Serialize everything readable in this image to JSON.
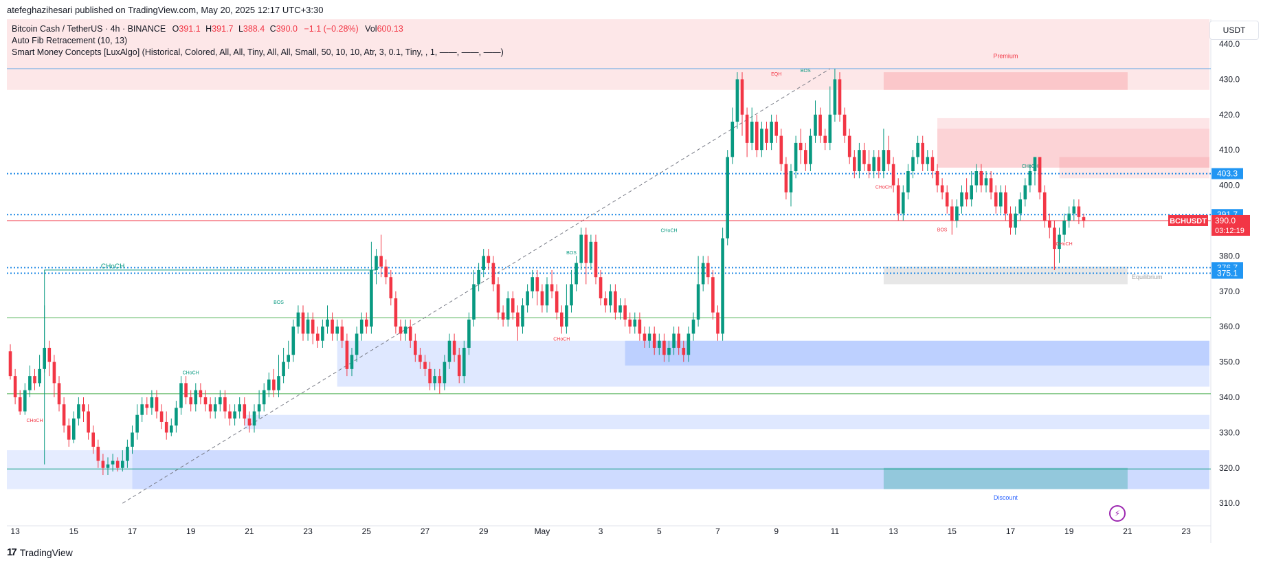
{
  "header": {
    "publisher_line": "atefeghazihesari published on TradingView.com, May 20, 2025 12:17 UTC+3:30"
  },
  "legend": {
    "symbol": "Bitcoin Cash / TetherUS · 4h · BINANCE",
    "open_label": "O",
    "open": "391.1",
    "high_label": "H",
    "high": "391.7",
    "low_label": "L",
    "low": "388.4",
    "close_label": "C",
    "close": "390.0",
    "change": "−1.1 (−0.28%)",
    "vol_label": "Vol",
    "volume": "600.13",
    "indicator_1": "Auto Fib Retracement (10, 13)",
    "indicator_2": "Smart Money Concepts [LuxAlgo] (Historical, Colored, All, All, Tiny, All, All, Small, 50, 10, 10, Atr, 3, 0.1, Tiny, , 1, ——, ——, ——)"
  },
  "currency_button": "USDT",
  "footer": {
    "logo": "17",
    "brand": "TradingView"
  },
  "colors": {
    "up": "#089981",
    "down": "#f23645",
    "premium": "#f23645",
    "discount": "#2962ff",
    "fib": "#1e88e5",
    "equilibrium": "#9e9e9e"
  },
  "chart_data": {
    "type": "candlestick",
    "symbol": "BCHUSDT",
    "timeframe": "4h",
    "ylim": [
      304,
      447
    ],
    "y_ticks": [
      310.0,
      320.0,
      330.0,
      340.0,
      350.0,
      360.0,
      370.0,
      380.0,
      390.0,
      400.0,
      410.0,
      420.0,
      430.0,
      440.0
    ],
    "x_tick_labels": [
      "13",
      "15",
      "17",
      "19",
      "21",
      "23",
      "25",
      "27",
      "29",
      "May",
      "3",
      "5",
      "7",
      "9",
      "11",
      "13",
      "15",
      "17",
      "19",
      "21",
      "23"
    ],
    "x_tick_pos": [
      0,
      12,
      24,
      36,
      48,
      60,
      72,
      84,
      96,
      108,
      120,
      132,
      144,
      156,
      168,
      180,
      192,
      204,
      216,
      228,
      240
    ],
    "candles_start_index": -1,
    "candles": [
      [
        353,
        346,
        355,
        345
      ],
      [
        346,
        340,
        348,
        338
      ],
      [
        340,
        336,
        342,
        335
      ],
      [
        336,
        342,
        344,
        335
      ],
      [
        342,
        346,
        349,
        340
      ],
      [
        346,
        344,
        348,
        342
      ],
      [
        344,
        348,
        352,
        343
      ],
      [
        348,
        354,
        366,
        347
      ],
      [
        354,
        350,
        356,
        346
      ],
      [
        350,
        344,
        352,
        340
      ],
      [
        344,
        338,
        346,
        336
      ],
      [
        338,
        332,
        340,
        330
      ],
      [
        332,
        328,
        334,
        326
      ],
      [
        328,
        334,
        336,
        327
      ],
      [
        334,
        338,
        340,
        332
      ],
      [
        338,
        336,
        340,
        333
      ],
      [
        336,
        330,
        338,
        328
      ],
      [
        330,
        326,
        332,
        324
      ],
      [
        326,
        322,
        328,
        320
      ],
      [
        322,
        320,
        324,
        318
      ],
      [
        320,
        321,
        323,
        318
      ],
      [
        321,
        322,
        324,
        319
      ],
      [
        322,
        320,
        323,
        319
      ],
      [
        320,
        322,
        325,
        319
      ],
      [
        322,
        326,
        328,
        320
      ],
      [
        326,
        330,
        332,
        324
      ],
      [
        330,
        335,
        338,
        328
      ],
      [
        335,
        338,
        340,
        333
      ],
      [
        338,
        337,
        340,
        335
      ],
      [
        337,
        340,
        342,
        335
      ],
      [
        340,
        336,
        342,
        334
      ],
      [
        336,
        333,
        338,
        331
      ],
      [
        333,
        330,
        336,
        328
      ],
      [
        330,
        332,
        334,
        329
      ],
      [
        332,
        337,
        339,
        330
      ],
      [
        337,
        344,
        346,
        335
      ],
      [
        344,
        340,
        346,
        338
      ],
      [
        340,
        338,
        342,
        336
      ],
      [
        338,
        342,
        344,
        336
      ],
      [
        342,
        340,
        344,
        338
      ],
      [
        340,
        338,
        342,
        336
      ],
      [
        338,
        336,
        340,
        334
      ],
      [
        336,
        338,
        340,
        334
      ],
      [
        338,
        340,
        342,
        336
      ],
      [
        340,
        336,
        342,
        334
      ],
      [
        336,
        334,
        338,
        332
      ],
      [
        334,
        336,
        338,
        332
      ],
      [
        336,
        338,
        340,
        334
      ],
      [
        338,
        334,
        340,
        332
      ],
      [
        334,
        332,
        336,
        330
      ],
      [
        332,
        336,
        338,
        330
      ],
      [
        336,
        338,
        342,
        334
      ],
      [
        338,
        342,
        344,
        336
      ],
      [
        342,
        345,
        347,
        340
      ],
      [
        345,
        342,
        348,
        340
      ],
      [
        342,
        346,
        352,
        340
      ],
      [
        346,
        350,
        354,
        344
      ],
      [
        350,
        352,
        356,
        348
      ],
      [
        352,
        360,
        362,
        350
      ],
      [
        360,
        364,
        366,
        358
      ],
      [
        364,
        358,
        366,
        356
      ],
      [
        358,
        362,
        364,
        356
      ],
      [
        362,
        358,
        364,
        355
      ],
      [
        358,
        356,
        360,
        354
      ],
      [
        356,
        360,
        362,
        354
      ],
      [
        360,
        362,
        366,
        358
      ],
      [
        362,
        358,
        364,
        356
      ],
      [
        358,
        360,
        362,
        356
      ],
      [
        360,
        356,
        362,
        354
      ],
      [
        356,
        348,
        358,
        346
      ],
      [
        348,
        352,
        354,
        346
      ],
      [
        352,
        358,
        360,
        350
      ],
      [
        358,
        362,
        364,
        356
      ],
      [
        362,
        360,
        364,
        358
      ],
      [
        360,
        376,
        384,
        358
      ],
      [
        376,
        380,
        382,
        372
      ],
      [
        380,
        377,
        386,
        374
      ],
      [
        377,
        374,
        379,
        372
      ],
      [
        374,
        368,
        376,
        366
      ],
      [
        368,
        360,
        370,
        358
      ],
      [
        360,
        358,
        362,
        356
      ],
      [
        358,
        360,
        362,
        356
      ],
      [
        360,
        356,
        362,
        354
      ],
      [
        356,
        352,
        358,
        350
      ],
      [
        352,
        350,
        354,
        348
      ],
      [
        350,
        348,
        352,
        346
      ],
      [
        348,
        344,
        350,
        342
      ],
      [
        344,
        346,
        348,
        342
      ],
      [
        346,
        344,
        348,
        341
      ],
      [
        344,
        350,
        352,
        342
      ],
      [
        350,
        356,
        358,
        348
      ],
      [
        356,
        352,
        358,
        350
      ],
      [
        352,
        346,
        354,
        344
      ],
      [
        346,
        354,
        356,
        344
      ],
      [
        354,
        362,
        364,
        352
      ],
      [
        362,
        372,
        376,
        360
      ],
      [
        372,
        376,
        378,
        370
      ],
      [
        376,
        380,
        382,
        374
      ],
      [
        380,
        378,
        382,
        376
      ],
      [
        378,
        372,
        380,
        370
      ],
      [
        372,
        364,
        374,
        362
      ],
      [
        364,
        362,
        366,
        360
      ],
      [
        362,
        368,
        370,
        360
      ],
      [
        368,
        364,
        370,
        362
      ],
      [
        364,
        360,
        366,
        356
      ],
      [
        360,
        366,
        368,
        358
      ],
      [
        366,
        370,
        372,
        364
      ],
      [
        370,
        374,
        376,
        368
      ],
      [
        374,
        370,
        376,
        366
      ],
      [
        370,
        366,
        372,
        364
      ],
      [
        366,
        372,
        374,
        364
      ],
      [
        372,
        370,
        376,
        368
      ],
      [
        370,
        364,
        372,
        362
      ],
      [
        364,
        360,
        366,
        358
      ],
      [
        360,
        366,
        372,
        358
      ],
      [
        366,
        372,
        376,
        364
      ],
      [
        372,
        378,
        380,
        370
      ],
      [
        378,
        386,
        388,
        376
      ],
      [
        386,
        378,
        388,
        372
      ],
      [
        378,
        384,
        386,
        376
      ],
      [
        384,
        374,
        386,
        372
      ],
      [
        374,
        368,
        376,
        366
      ],
      [
        368,
        366,
        370,
        364
      ],
      [
        366,
        370,
        372,
        364
      ],
      [
        370,
        364,
        372,
        362
      ],
      [
        364,
        366,
        368,
        362
      ],
      [
        366,
        362,
        368,
        360
      ],
      [
        362,
        360,
        364,
        358
      ],
      [
        360,
        362,
        364,
        358
      ],
      [
        362,
        358,
        364,
        356
      ],
      [
        358,
        356,
        360,
        354
      ],
      [
        356,
        358,
        360,
        354
      ],
      [
        358,
        354,
        360,
        352
      ],
      [
        354,
        356,
        358,
        352
      ],
      [
        356,
        352,
        358,
        350
      ],
      [
        352,
        354,
        356,
        350
      ],
      [
        354,
        358,
        360,
        352
      ],
      [
        358,
        354,
        360,
        352
      ],
      [
        354,
        352,
        356,
        350
      ],
      [
        352,
        358,
        360,
        350
      ],
      [
        358,
        362,
        364,
        356
      ],
      [
        362,
        372,
        380,
        360
      ],
      [
        372,
        378,
        380,
        370
      ],
      [
        378,
        374,
        380,
        372
      ],
      [
        374,
        364,
        376,
        362
      ],
      [
        364,
        358,
        366,
        356
      ],
      [
        358,
        385,
        388,
        356
      ],
      [
        385,
        408,
        410,
        383
      ],
      [
        408,
        418,
        422,
        406
      ],
      [
        418,
        430,
        432,
        416
      ],
      [
        430,
        420,
        432,
        414
      ],
      [
        420,
        412,
        422,
        408
      ],
      [
        412,
        418,
        422,
        410
      ],
      [
        418,
        410,
        420,
        408
      ],
      [
        410,
        416,
        418,
        408
      ],
      [
        416,
        412,
        418,
        410
      ],
      [
        412,
        418,
        420,
        410
      ],
      [
        418,
        414,
        420,
        412
      ],
      [
        414,
        406,
        416,
        404
      ],
      [
        406,
        398,
        408,
        396
      ],
      [
        398,
        404,
        406,
        394
      ],
      [
        404,
        412,
        414,
        402
      ],
      [
        412,
        410,
        416,
        406
      ],
      [
        410,
        406,
        412,
        404
      ],
      [
        406,
        414,
        416,
        404
      ],
      [
        414,
        420,
        424,
        412
      ],
      [
        420,
        414,
        422,
        412
      ],
      [
        414,
        412,
        416,
        410
      ],
      [
        412,
        420,
        428,
        410
      ],
      [
        420,
        430,
        433,
        418
      ],
      [
        430,
        420,
        432,
        418
      ],
      [
        420,
        414,
        422,
        412
      ],
      [
        414,
        408,
        416,
        406
      ],
      [
        408,
        404,
        410,
        402
      ],
      [
        404,
        410,
        412,
        402
      ],
      [
        410,
        406,
        412,
        404
      ],
      [
        406,
        404,
        410,
        402
      ],
      [
        404,
        408,
        410,
        402
      ],
      [
        408,
        404,
        410,
        402
      ],
      [
        404,
        410,
        416,
        402
      ],
      [
        410,
        406,
        414,
        404
      ],
      [
        406,
        400,
        408,
        398
      ],
      [
        400,
        392,
        402,
        390
      ],
      [
        392,
        398,
        400,
        390
      ],
      [
        398,
        404,
        406,
        396
      ],
      [
        404,
        408,
        410,
        402
      ],
      [
        408,
        412,
        414,
        406
      ],
      [
        412,
        406,
        414,
        404
      ],
      [
        406,
        408,
        410,
        404
      ],
      [
        408,
        404,
        410,
        402
      ],
      [
        404,
        400,
        406,
        398
      ],
      [
        400,
        398,
        402,
        396
      ],
      [
        398,
        394,
        400,
        392
      ],
      [
        394,
        390,
        396,
        386
      ],
      [
        390,
        394,
        396,
        388
      ],
      [
        394,
        398,
        400,
        392
      ],
      [
        398,
        396,
        402,
        394
      ],
      [
        396,
        400,
        404,
        394
      ],
      [
        400,
        404,
        406,
        398
      ],
      [
        404,
        400,
        406,
        398
      ],
      [
        400,
        402,
        404,
        398
      ],
      [
        402,
        398,
        404,
        396
      ],
      [
        398,
        394,
        400,
        392
      ],
      [
        394,
        398,
        400,
        392
      ],
      [
        398,
        392,
        400,
        390
      ],
      [
        392,
        388,
        394,
        386
      ],
      [
        388,
        392,
        394,
        386
      ],
      [
        392,
        396,
        398,
        390
      ],
      [
        396,
        400,
        402,
        394
      ],
      [
        400,
        404,
        406,
        398
      ],
      [
        404,
        408,
        408,
        400
      ],
      [
        408,
        398,
        408,
        396
      ],
      [
        398,
        390,
        400,
        388
      ],
      [
        390,
        388,
        392,
        385
      ],
      [
        388,
        382,
        390,
        376
      ],
      [
        382,
        386,
        388,
        378
      ],
      [
        386,
        390,
        392,
        384
      ],
      [
        390,
        392,
        394,
        388
      ],
      [
        392,
        394,
        396,
        390
      ],
      [
        394,
        391,
        396,
        389
      ],
      [
        391,
        390,
        392,
        388
      ]
    ],
    "horizontal_levels": [
      {
        "price": 403.3,
        "label": "403.3",
        "style": "dotted"
      },
      {
        "price": 391.7,
        "label": "391.7",
        "style": "dotted"
      },
      {
        "price": 376.7,
        "label": "376.7",
        "style": "dotted"
      },
      {
        "price": 375.1,
        "label": "375.1",
        "style": "dotted"
      },
      {
        "price": 362.5,
        "label": "",
        "style": "solid-green"
      },
      {
        "price": 341.0,
        "label": "",
        "style": "solid-green"
      },
      {
        "price": 319.7,
        "label": "",
        "style": "solid-teal"
      }
    ],
    "current_price": {
      "symbol": "BCHUSDT",
      "price": 390.0,
      "label": "390.0",
      "countdown": "03:12:19"
    },
    "zones": [
      {
        "label": "Premium",
        "from": 427,
        "to": 447,
        "color": "#f23645"
      },
      {
        "label": "Discount",
        "from": 314,
        "to": 325,
        "color": "#2962ff"
      },
      {
        "label": "Equilibrium",
        "from": 372,
        "to": 377,
        "color": "#9e9e9e"
      }
    ],
    "annotations": [
      {
        "text": "CHoCH",
        "x": 20,
        "y": 376.5,
        "color": "#089981"
      },
      {
        "text": "CHoCH",
        "x": 36,
        "y": 346.5,
        "color": "#089981"
      },
      {
        "text": "BOS",
        "x": 54,
        "y": 366.5,
        "color": "#089981"
      },
      {
        "text": "CHoCH",
        "x": 4,
        "y": 333,
        "color": "#f23645"
      },
      {
        "text": "BOS",
        "x": 114,
        "y": 380.5,
        "color": "#089981"
      },
      {
        "text": "CHoCH",
        "x": 112,
        "y": 356,
        "color": "#f23645"
      },
      {
        "text": "CHoCH",
        "x": 134,
        "y": 386.8,
        "color": "#089981"
      },
      {
        "text": "EQH",
        "x": 156,
        "y": 431,
        "color": "#f23645"
      },
      {
        "text": "BOS",
        "x": 162,
        "y": 432,
        "color": "#089981"
      },
      {
        "text": "CHoCH",
        "x": 178,
        "y": 399,
        "color": "#f23645"
      },
      {
        "text": "BOS",
        "x": 190,
        "y": 387,
        "color": "#f23645"
      },
      {
        "text": "CHoCH",
        "x": 208,
        "y": 405,
        "color": "#089981"
      },
      {
        "text": "CHoCH",
        "x": 215,
        "y": 383,
        "color": "#f23645"
      }
    ]
  }
}
